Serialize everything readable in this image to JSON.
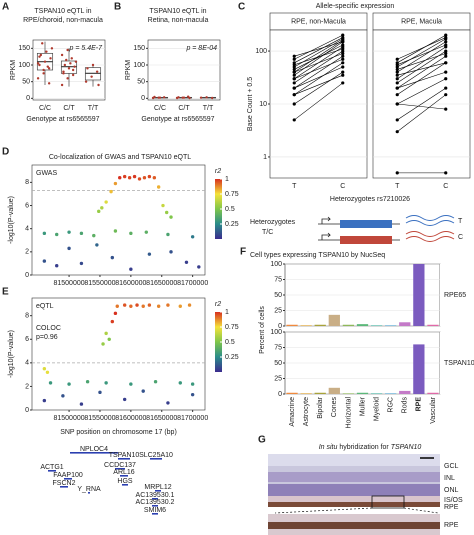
{
  "panel_labels": [
    "A",
    "B",
    "C",
    "D",
    "E",
    "F",
    "G"
  ],
  "chart_data": [
    {
      "type": "box",
      "title": [
        "TSPAN10 eQTL in",
        "RPE/choroid, non-macula"
      ],
      "y_label": "RPKM",
      "x_label": "Genotype at rs6565597",
      "annotation": "p = 5.4E-7",
      "categories": [
        "C/C",
        "C/T",
        "T/T"
      ],
      "boxes": [
        {
          "min": 40,
          "q1": 85,
          "median": 110,
          "q3": 135,
          "max": 170
        },
        {
          "min": 35,
          "q1": 75,
          "median": 95,
          "q3": 112,
          "max": 150
        },
        {
          "min": 35,
          "q1": 55,
          "median": 75,
          "q3": 92,
          "max": 102
        }
      ],
      "points": [
        [
          60,
          75,
          90,
          100,
          110,
          120,
          130,
          140,
          150,
          165,
          95,
          105,
          85,
          45,
          125
        ],
        [
          40,
          60,
          70,
          80,
          90,
          95,
          100,
          105,
          110,
          115,
          120,
          130,
          145,
          85,
          75
        ],
        [
          50,
          65,
          80,
          90,
          100,
          40
        ]
      ],
      "ylim": [
        -5,
        175
      ],
      "yticks": [
        0,
        50,
        100,
        150
      ],
      "grid": true,
      "color": "#444444",
      "point_color": "#b03a2e"
    },
    {
      "type": "box",
      "title": [
        "TSPAN10 eQTL in",
        "Retina, non-macula"
      ],
      "y_label": "RPKM",
      "x_label": "Genotype at rs6565597",
      "annotation": "p = 8E-04",
      "categories": [
        "C/C",
        "C/T",
        "T/T"
      ],
      "boxes": [
        {
          "min": 0,
          "q1": 1,
          "median": 2,
          "q3": 3,
          "max": 5
        },
        {
          "min": 0,
          "q1": 1,
          "median": 2,
          "q3": 3,
          "max": 5
        },
        {
          "min": 0,
          "q1": 1,
          "median": 2,
          "q3": 3,
          "max": 4
        }
      ],
      "points": [
        [
          1,
          2,
          3,
          4,
          2
        ],
        [
          1,
          2,
          5,
          3,
          2,
          1
        ],
        [
          2,
          3,
          1
        ]
      ],
      "ylim": [
        -5,
        175
      ],
      "yticks": [
        0,
        50,
        100,
        150
      ],
      "grid": true,
      "color": "#444444",
      "point_color": "#b03a2e"
    },
    {
      "type": "paired_line",
      "title": "Allele-specific expression",
      "y_label": "Base Count + 0.5",
      "x_label": "Heterozygotes rs7210026",
      "categories": [
        "T",
        "C"
      ],
      "log_y": true,
      "ylim": [
        0.4,
        250
      ],
      "yticks": [
        1,
        10,
        100
      ],
      "grid": true,
      "color": "#000000",
      "series": [
        {
          "name": "RPE, non-Macula",
          "values": [
            [
              5,
              25
            ],
            [
              10,
              40
            ],
            [
              15,
              60
            ],
            [
              20,
              80
            ],
            [
              25,
              100
            ],
            [
              30,
              120
            ],
            [
              35,
              150
            ],
            [
              40,
              160
            ],
            [
              45,
              130
            ],
            [
              50,
              170
            ],
            [
              60,
              180
            ],
            [
              70,
              200
            ],
            [
              20,
              50
            ],
            [
              30,
              70
            ],
            [
              40,
              90
            ],
            [
              15,
              35
            ],
            [
              55,
              110
            ],
            [
              80,
              150
            ]
          ]
        },
        {
          "name": "RPE, Macula",
          "values": [
            [
              0.5,
              0.5
            ],
            [
              3,
              15
            ],
            [
              5,
              20
            ],
            [
              10,
              30
            ],
            [
              15,
              60
            ],
            [
              20,
              80
            ],
            [
              25,
              100
            ],
            [
              30,
              120
            ],
            [
              40,
              150
            ],
            [
              50,
              170
            ],
            [
              60,
              200
            ],
            [
              70,
              180
            ],
            [
              20,
              40
            ],
            [
              35,
              60
            ],
            [
              45,
              90
            ],
            [
              10,
              8
            ],
            [
              55,
              130
            ]
          ]
        }
      ]
    },
    {
      "type": "scatter",
      "title": "Co-localization of GWAS and TSPAN10 eQTL",
      "label": "GWAS",
      "y_label": "-log10(P-value)",
      "x": [
        81582000,
        81590000,
        81598000,
        81606000,
        81614000,
        81622000,
        81630000,
        81638000,
        81575000,
        81645000,
        81568000,
        81560000,
        81553000,
        81548000,
        81652000,
        81658000,
        81665000,
        81460000,
        81480000,
        81500000,
        81520000,
        81540000,
        81575000,
        81600000,
        81625000,
        81660000,
        81460000,
        81480000,
        81500000,
        81520000,
        81545000,
        81570000,
        81600000,
        81630000,
        81665000,
        81690000,
        81700000,
        81710000
      ],
      "y": [
        8.4,
        8.5,
        8.4,
        8.5,
        8.3,
        8.4,
        8.5,
        8.4,
        7.9,
        7.6,
        7.2,
        6.3,
        5.8,
        5.5,
        6.0,
        5.4,
        5.0,
        3.6,
        3.5,
        3.7,
        3.6,
        3.4,
        3.8,
        3.6,
        3.7,
        3.5,
        1.2,
        0.8,
        2.3,
        1.0,
        2.6,
        1.5,
        0.5,
        1.8,
        2.0,
        1.1,
        3.3,
        0.7
      ],
      "r2": [
        1,
        0.98,
        0.97,
        0.99,
        0.96,
        0.95,
        0.97,
        0.94,
        0.85,
        0.82,
        0.8,
        0.7,
        0.6,
        0.55,
        0.65,
        0.55,
        0.5,
        0.3,
        0.35,
        0.3,
        0.35,
        0.4,
        0.45,
        0.4,
        0.4,
        0.35,
        0.1,
        0.05,
        0.1,
        0.08,
        0.15,
        0.1,
        0.05,
        0.12,
        0.1,
        0.05,
        0.2,
        0.05
      ],
      "threshold": 7.3,
      "xlim": [
        81440000,
        81720000
      ],
      "xticks": [
        81500000,
        81550000,
        81600000,
        81650000,
        81700000
      ],
      "ylim": [
        0,
        9.5
      ],
      "yticks": [
        0,
        2,
        4,
        6,
        8
      ],
      "colorbar": {
        "title": "r2",
        "ticks": [
          0.25,
          0.5,
          0.75,
          1
        ],
        "colors": [
          "#3b2b8e",
          "#2a8c8a",
          "#7fc64a",
          "#f5e23a",
          "#d7301f"
        ]
      }
    },
    {
      "type": "scatter",
      "label": "eQTL",
      "annotation": [
        "COLOC",
        "p=0.96"
      ],
      "y_label": "-log10(P-value)",
      "x_label": "SNP position on chromosome 17 (bp)",
      "x": [
        81578000,
        81590000,
        81600000,
        81610000,
        81620000,
        81630000,
        81645000,
        81660000,
        81680000,
        81695000,
        81575000,
        81570000,
        81560000,
        81555000,
        81565000,
        81460000,
        81465000,
        81470000,
        81500000,
        81530000,
        81560000,
        81600000,
        81640000,
        81680000,
        81700000,
        81460000,
        81490000,
        81520000,
        81550000,
        81590000,
        81620000,
        81660000,
        81700000
      ],
      "y": [
        8.8,
        8.9,
        8.8,
        8.9,
        8.8,
        8.9,
        8.8,
        8.9,
        8.8,
        8.9,
        8.2,
        7.5,
        6.5,
        5.6,
        6.0,
        3.5,
        3.2,
        2.3,
        2.2,
        2.4,
        2.3,
        2.2,
        2.4,
        2.3,
        2.2,
        0.8,
        1.2,
        0.5,
        1.5,
        0.9,
        1.6,
        0.6,
        1.3
      ],
      "r2": [
        0.9,
        0.95,
        0.92,
        0.96,
        0.9,
        0.93,
        0.88,
        0.9,
        0.85,
        0.87,
        1,
        0.98,
        0.6,
        0.55,
        0.5,
        0.7,
        0.72,
        0.3,
        0.3,
        0.35,
        0.3,
        0.3,
        0.35,
        0.3,
        0.3,
        0.05,
        0.1,
        0.05,
        0.1,
        0.05,
        0.1,
        0.05,
        0.1
      ],
      "threshold": 4,
      "xlim": [
        81440000,
        81720000
      ],
      "xticks": [
        81500000,
        81550000,
        81600000,
        81650000,
        81700000
      ],
      "ylim": [
        0,
        9.5
      ],
      "yticks": [
        0,
        2,
        4,
        6,
        8
      ],
      "colorbar": {
        "title": "r2",
        "ticks": [
          0.25,
          0.5,
          0.75,
          1
        ],
        "colors": [
          "#3b2b8e",
          "#2a8c8a",
          "#7fc64a",
          "#f5e23a",
          "#d7301f"
        ]
      }
    },
    {
      "type": "bar",
      "title": "Cell types expressing TSPAN10 by NucSeq",
      "y_label": "Percent of cells",
      "categories": [
        "Amacrine",
        "Astrocyte",
        "Bipolar",
        "Cones",
        "Horizontal",
        "Muller",
        "Myeloid",
        "RGC",
        "Rods",
        "RPE",
        "Vascular"
      ],
      "colors": [
        "#f08a3e",
        "#dca02c",
        "#a8a33a",
        "#c9ae86",
        "#8fb85a",
        "#5cb87a",
        "#48b4a4",
        "#52a5d0",
        "#c47ac8",
        "#7b5bbf",
        "#e06aa8"
      ],
      "series": [
        {
          "name": "RPE65",
          "values": [
            2,
            1,
            2,
            18,
            2,
            3,
            1,
            1,
            6,
            100,
            2
          ]
        },
        {
          "name": "TSPAN10",
          "values": [
            2,
            1,
            2,
            10,
            1,
            2,
            1,
            1,
            5,
            80,
            2
          ]
        }
      ],
      "ylim": [
        0,
        100
      ],
      "yticks": [
        0,
        25,
        50,
        75,
        100
      ],
      "grid": true
    }
  ],
  "diagram_c": {
    "label": [
      "Heterozygotes",
      "T/C"
    ],
    "alleles": [
      "T",
      "C"
    ]
  },
  "gene_track": {
    "genes": [
      "NPLOC4",
      "TSPAN10",
      "ACTG1",
      "FAAP100",
      "FSCN2",
      "Y_RNA",
      "CCDC137",
      "SLC25A10",
      "ARL16",
      "HGS",
      "MRPL12",
      "AC139530.1",
      "AC139530.2",
      "SMIM6"
    ]
  },
  "figure_g": {
    "title": [
      "In situ",
      " hybridization for ",
      "TSPAN10"
    ],
    "layers": [
      "GCL",
      "INL",
      "ONL",
      "IS/OS",
      "RPE"
    ],
    "inset_label": "RPE"
  }
}
